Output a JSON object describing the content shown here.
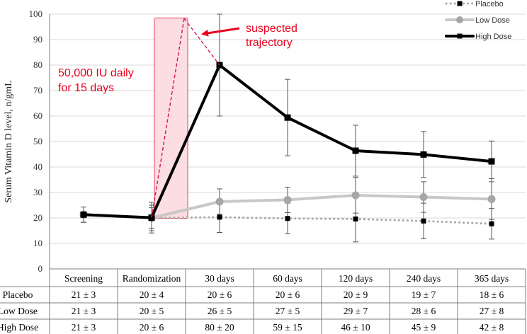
{
  "chart_data": {
    "type": "line",
    "ylabel": "Serum Vitamin D level, n/gmL",
    "ylim": [
      0,
      100
    ],
    "yticks": [
      0,
      10,
      20,
      30,
      40,
      50,
      60,
      70,
      80,
      90,
      100
    ],
    "grid": true,
    "categories": [
      "Screening",
      "Randomization",
      "30 days",
      "60 days",
      "120 days",
      "240 days",
      "365 days"
    ],
    "series": [
      {
        "name": "Placebo",
        "color": "#a6a6a6",
        "style": "dotted",
        "marker": "square",
        "values": [
          21.3,
          20.0,
          20.3,
          19.8,
          19.6,
          18.8,
          17.7
        ],
        "error": [
          3,
          4,
          6,
          6,
          9,
          7,
          6
        ]
      },
      {
        "name": "Low Dose",
        "color": "#c8c8c8",
        "style": "solid",
        "marker": "circle",
        "values": [
          21.3,
          20.0,
          26.4,
          27.1,
          28.9,
          28.2,
          27.4
        ],
        "error": [
          3,
          5,
          5,
          5,
          7,
          6,
          8
        ]
      },
      {
        "name": "High Dose",
        "color": "#000000",
        "style": "solid",
        "marker": "square",
        "values": [
          21.3,
          20.1,
          80.0,
          59.4,
          46.4,
          44.9,
          42.2
        ],
        "error": [
          3,
          6,
          20,
          15,
          10,
          9,
          8
        ]
      }
    ],
    "legend": [
      "Placebo",
      "Low Dose",
      "High Dose"
    ],
    "legend_position": "top-right",
    "annotations": {
      "dose_box_text": [
        "50,000 IU daily",
        "for 15 days"
      ],
      "suspected_text": [
        "suspected",
        "trajectory"
      ],
      "highlight_fill": "#fbdde2",
      "highlight_stroke": "#e8405a",
      "annotation_color": "#e8001c",
      "dash_color": "#d4145a",
      "suspected_peak": 100
    },
    "table": {
      "columns": [
        "Screening",
        "Randomization",
        "30 days",
        "60 days",
        "120 days",
        "240 days",
        "365 days"
      ],
      "rows": [
        {
          "label": "Placebo",
          "cells": [
            "21 ± 3",
            "20 ± 4",
            "20 ± 6",
            "20 ± 6",
            "20 ± 9",
            "19 ± 7",
            "18 ± 6"
          ]
        },
        {
          "label": "Low Dose",
          "cells": [
            "21 ± 3",
            "20 ± 5",
            "26 ± 5",
            "27 ± 5",
            "29 ± 7",
            "28 ± 6",
            "27 ± 8"
          ]
        },
        {
          "label": "High Dose",
          "cells": [
            "21 ± 3",
            "20 ± 6",
            "80 ± 20",
            "59 ± 15",
            "46 ± 10",
            "45 ± 9",
            "42 ± 8"
          ]
        }
      ]
    }
  }
}
